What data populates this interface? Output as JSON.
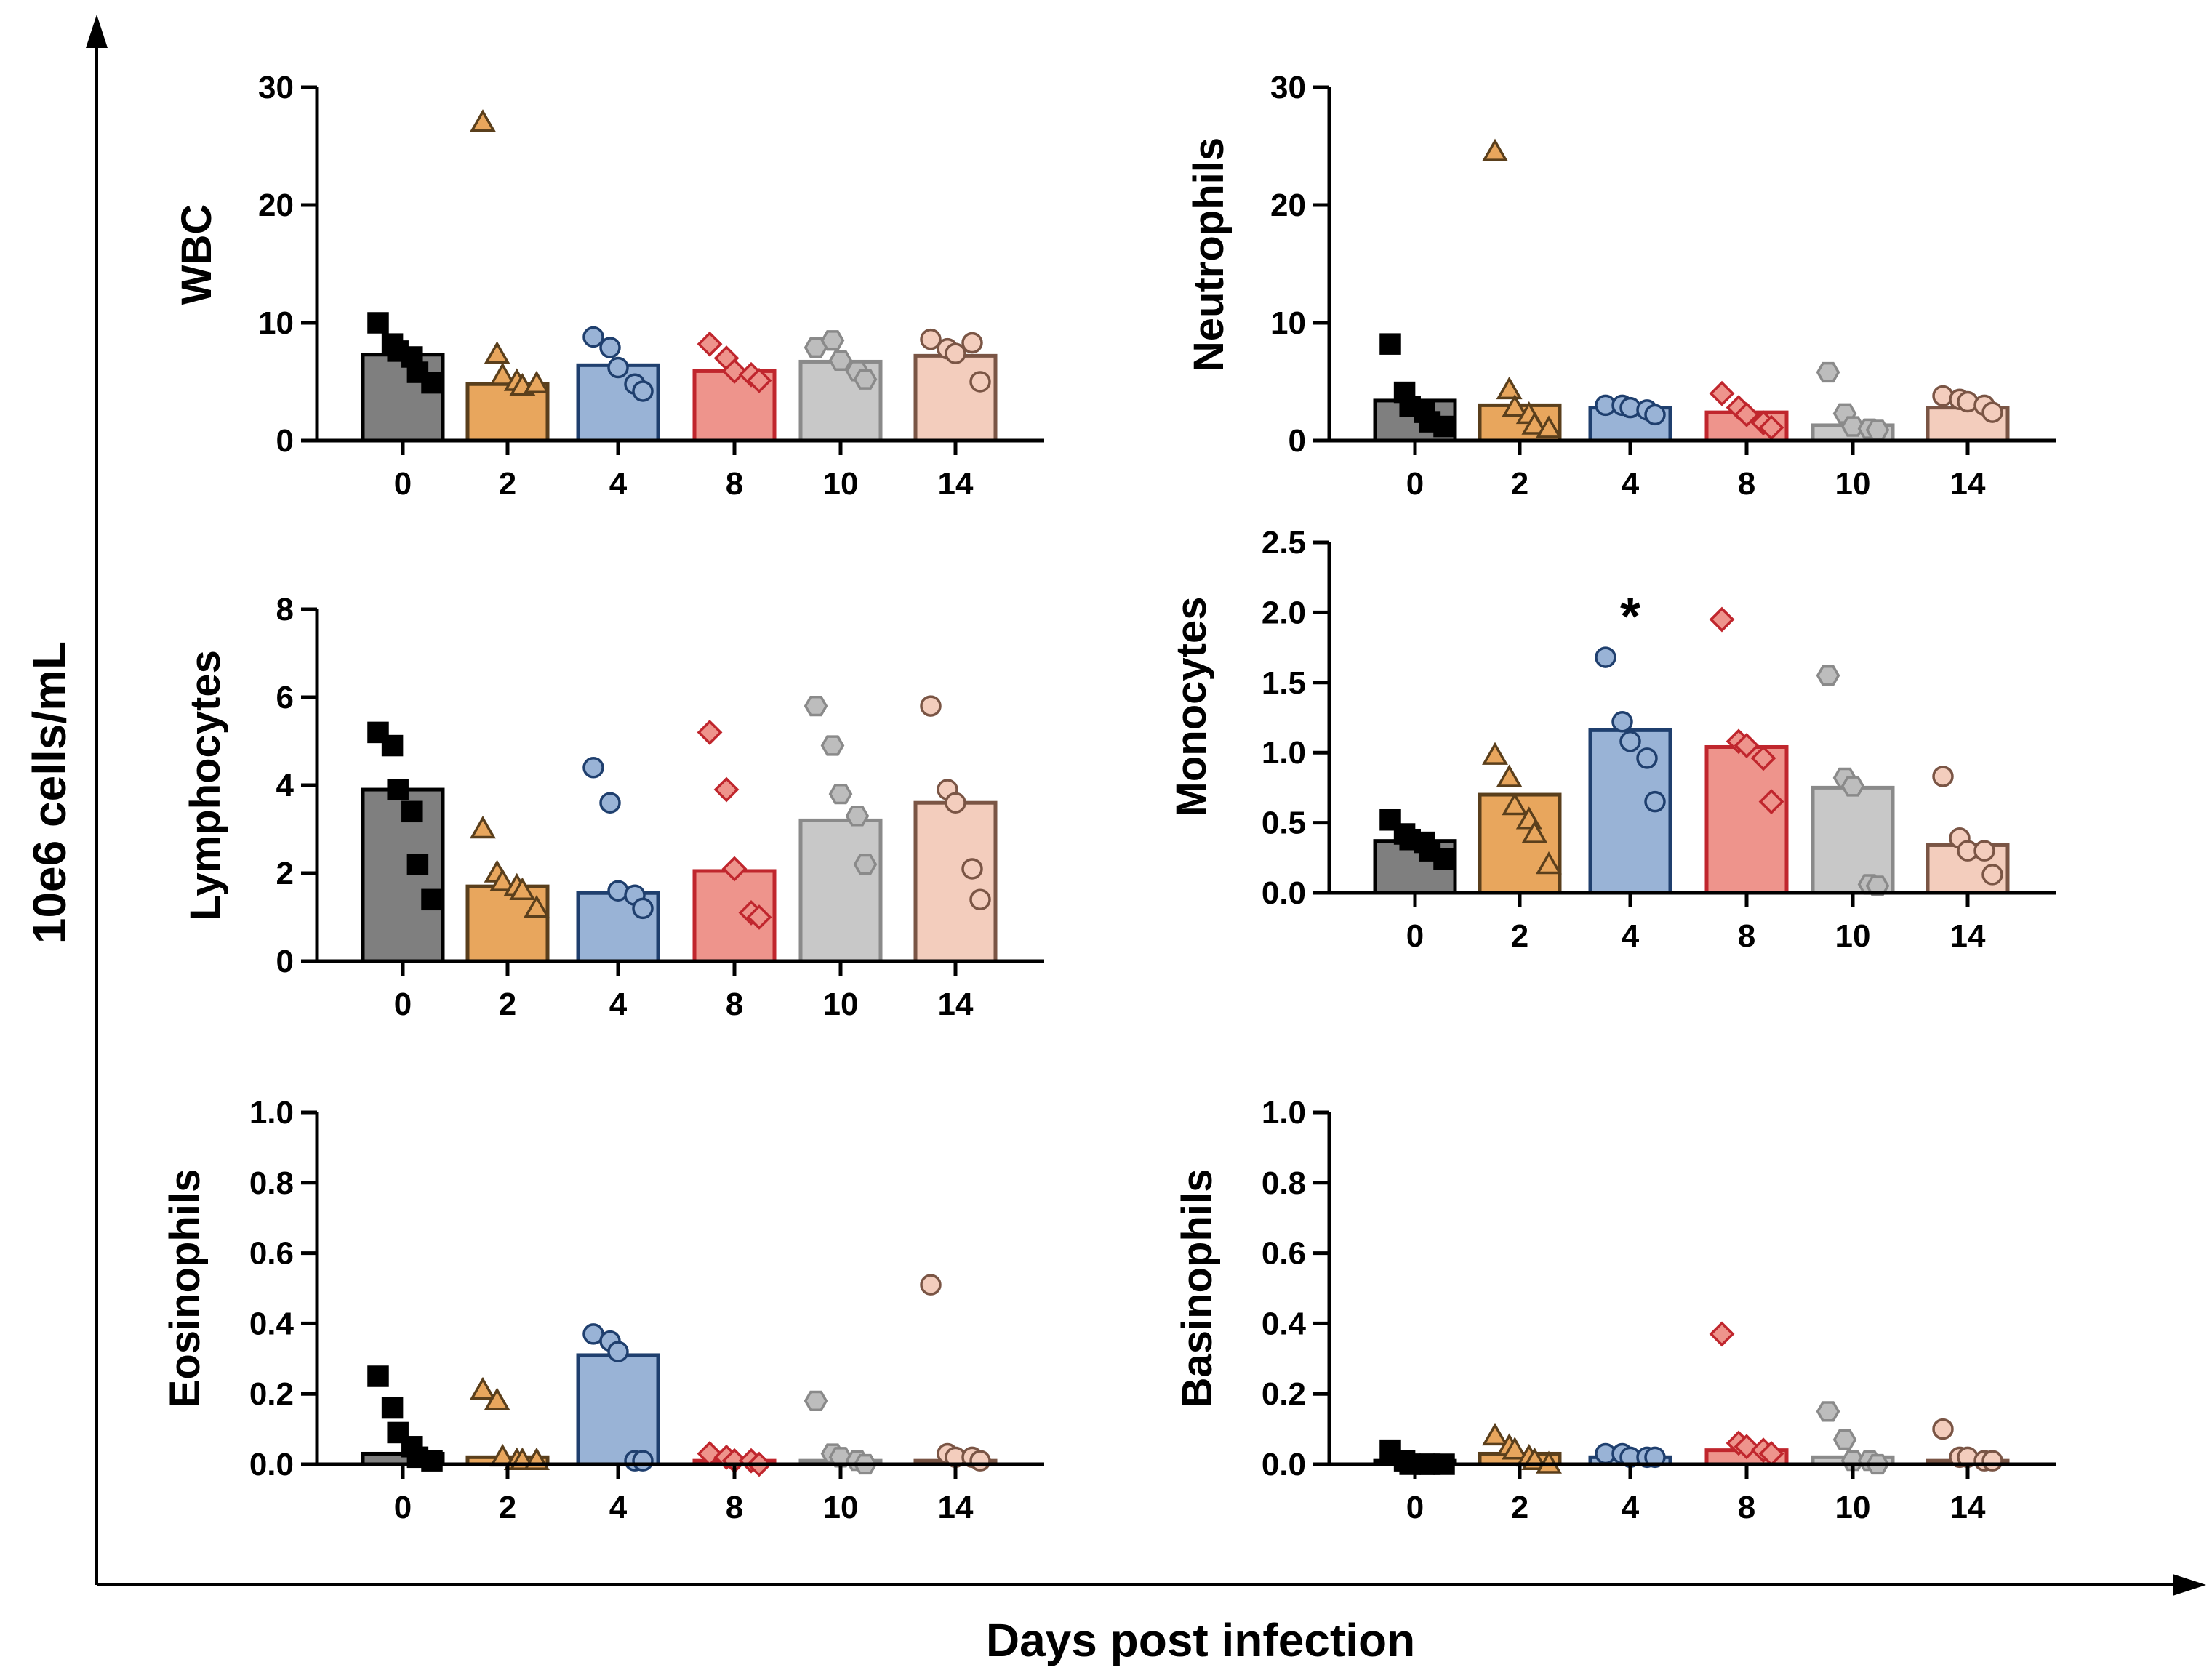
{
  "figure": {
    "xlabel": "Days post infection",
    "ylabel": "10e6 cells/mL",
    "significance_mark": "*"
  },
  "groups": [
    {
      "day": "0",
      "fill": "#7f7f7f",
      "edge": "#000000",
      "marker": "square",
      "marker_fill": "#000000",
      "marker_edge": "#000000"
    },
    {
      "day": "2",
      "fill": "#e8a65d",
      "edge": "#5a3f1c",
      "marker": "triangle",
      "marker_fill": "#e8a65d",
      "marker_edge": "#5a3f1c"
    },
    {
      "day": "4",
      "fill": "#99b3d6",
      "edge": "#1f3f6e",
      "marker": "circle",
      "marker_fill": "#99b3d6",
      "marker_edge": "#1f3f6e"
    },
    {
      "day": "8",
      "fill": "#ee948c",
      "edge": "#c0262d",
      "marker": "diamond",
      "marker_fill": "#ee948c",
      "marker_edge": "#c0262d"
    },
    {
      "day": "10",
      "fill": "#c8c8c8",
      "edge": "#8a8a8a",
      "marker": "hexagon",
      "marker_fill": "#bdbdbd",
      "marker_edge": "#8a8a8a"
    },
    {
      "day": "14",
      "fill": "#f3cdbd",
      "edge": "#7a5545",
      "marker": "circle",
      "marker_fill": "#f3cdbd",
      "marker_edge": "#7a5545"
    }
  ],
  "chart_data": [
    {
      "type": "bar",
      "title": "WBC",
      "ylabel": "WBC",
      "categories": [
        "0",
        "2",
        "4",
        "8",
        "10",
        "14"
      ],
      "ylim": [
        0,
        30
      ],
      "yticks": [
        "0",
        "10",
        "20",
        "30"
      ],
      "bars": [
        7.3,
        4.8,
        6.4,
        5.9,
        6.7,
        7.2
      ],
      "points": [
        [
          10.0,
          8.2,
          7.6,
          7.1,
          5.8,
          4.9
        ],
        [
          27.0,
          7.3,
          5.5,
          5.0,
          4.6,
          4.8
        ],
        [
          8.8,
          7.9,
          6.2,
          4.8,
          4.2
        ],
        [
          8.2,
          7.0,
          5.9,
          5.6,
          5.1
        ],
        [
          7.9,
          8.5,
          6.8,
          5.9,
          5.2
        ],
        [
          8.6,
          7.8,
          7.4,
          8.3,
          5.0
        ]
      ]
    },
    {
      "type": "bar",
      "title": "Neutrophils",
      "ylabel": "Neutrophils",
      "categories": [
        "0",
        "2",
        "4",
        "8",
        "10",
        "14"
      ],
      "ylim": [
        0,
        30
      ],
      "yticks": [
        "0",
        "10",
        "20",
        "30"
      ],
      "bars": [
        3.4,
        3.0,
        2.8,
        2.4,
        1.3,
        2.8
      ],
      "points": [
        [
          8.2,
          4.1,
          2.9,
          2.4,
          1.6,
          1.2
        ],
        [
          24.5,
          4.3,
          2.8,
          2.2,
          1.3,
          1.0
        ],
        [
          3.0,
          3.0,
          2.8,
          2.6,
          2.2
        ],
        [
          4.0,
          2.8,
          2.2,
          1.5,
          1.1
        ],
        [
          5.8,
          2.3,
          1.2,
          1.0,
          0.9
        ],
        [
          3.8,
          3.5,
          3.3,
          3.0,
          2.4
        ]
      ]
    },
    {
      "type": "bar",
      "title": "Lymphocytes",
      "ylabel": "Lymphocytes",
      "categories": [
        "0",
        "2",
        "4",
        "8",
        "10",
        "14"
      ],
      "ylim": [
        0,
        8
      ],
      "yticks": [
        "0",
        "2",
        "4",
        "6",
        "8"
      ],
      "bars": [
        3.9,
        1.7,
        1.55,
        2.05,
        3.2,
        3.6
      ],
      "points": [
        [
          5.2,
          4.9,
          3.9,
          3.4,
          2.2,
          1.4
        ],
        [
          3.0,
          2.0,
          1.8,
          1.7,
          1.6,
          1.2
        ],
        [
          4.4,
          3.6,
          1.6,
          1.5,
          1.2
        ],
        [
          5.2,
          3.9,
          2.1,
          1.1,
          1.0
        ],
        [
          5.8,
          4.9,
          3.8,
          3.3,
          2.2
        ],
        [
          5.8,
          3.9,
          3.6,
          2.1,
          1.4
        ]
      ]
    },
    {
      "type": "bar",
      "title": "Monocytes",
      "ylabel": "Monocytes",
      "categories": [
        "0",
        "2",
        "4",
        "8",
        "10",
        "14"
      ],
      "ylim": [
        0,
        2.5
      ],
      "yticks": [
        "0.0",
        "0.5",
        "1.0",
        "1.5",
        "2.0",
        "2.5"
      ],
      "bars": [
        0.37,
        0.7,
        1.16,
        1.04,
        0.75,
        0.34
      ],
      "points": [
        [
          0.52,
          0.42,
          0.38,
          0.36,
          0.3,
          0.24
        ],
        [
          0.98,
          0.82,
          0.62,
          0.52,
          0.42,
          0.2
        ],
        [
          1.68,
          1.22,
          1.08,
          0.96,
          0.65
        ],
        [
          1.95,
          1.08,
          1.05,
          0.96,
          0.65
        ],
        [
          1.55,
          0.82,
          0.76,
          0.06,
          0.05
        ],
        [
          0.83,
          0.39,
          0.3,
          0.3,
          0.13
        ]
      ],
      "significance": {
        "category": "4",
        "mark": "*",
        "y": 2.0
      }
    },
    {
      "type": "bar",
      "title": "Eosinophils",
      "ylabel": "Eosinophils",
      "categories": [
        "0",
        "2",
        "4",
        "8",
        "10",
        "14"
      ],
      "ylim": [
        0,
        1.0
      ],
      "yticks": [
        "0.0",
        "0.2",
        "0.4",
        "0.6",
        "0.8",
        "1.0"
      ],
      "bars": [
        0.03,
        0.02,
        0.31,
        0.01,
        0.01,
        0.01
      ],
      "points": [
        [
          0.25,
          0.16,
          0.09,
          0.05,
          0.02,
          0.01
        ],
        [
          0.21,
          0.18,
          0.02,
          0.01,
          0.01,
          0.01
        ],
        [
          0.37,
          0.35,
          0.32,
          0.01,
          0.01
        ],
        [
          0.03,
          0.02,
          0.01,
          0.01,
          0.0
        ],
        [
          0.18,
          0.03,
          0.02,
          0.01,
          0.0
        ],
        [
          0.51,
          0.03,
          0.02,
          0.02,
          0.01
        ]
      ]
    },
    {
      "type": "bar",
      "title": "Basinophils",
      "ylabel": "Basinophils",
      "categories": [
        "0",
        "2",
        "4",
        "8",
        "10",
        "14"
      ],
      "ylim": [
        0,
        1.0
      ],
      "yticks": [
        "0.0",
        "0.2",
        "0.4",
        "0.6",
        "0.8",
        "1.0"
      ],
      "bars": [
        0.01,
        0.03,
        0.02,
        0.04,
        0.02,
        0.01
      ],
      "points": [
        [
          0.04,
          0.01,
          0.0,
          0.0,
          0.0,
          0.0
        ],
        [
          0.08,
          0.05,
          0.04,
          0.02,
          0.01,
          0.0
        ],
        [
          0.03,
          0.03,
          0.02,
          0.02,
          0.02
        ],
        [
          0.37,
          0.06,
          0.05,
          0.04,
          0.03
        ],
        [
          0.15,
          0.07,
          0.01,
          0.01,
          0.0
        ],
        [
          0.1,
          0.02,
          0.02,
          0.01,
          0.01
        ]
      ]
    }
  ]
}
